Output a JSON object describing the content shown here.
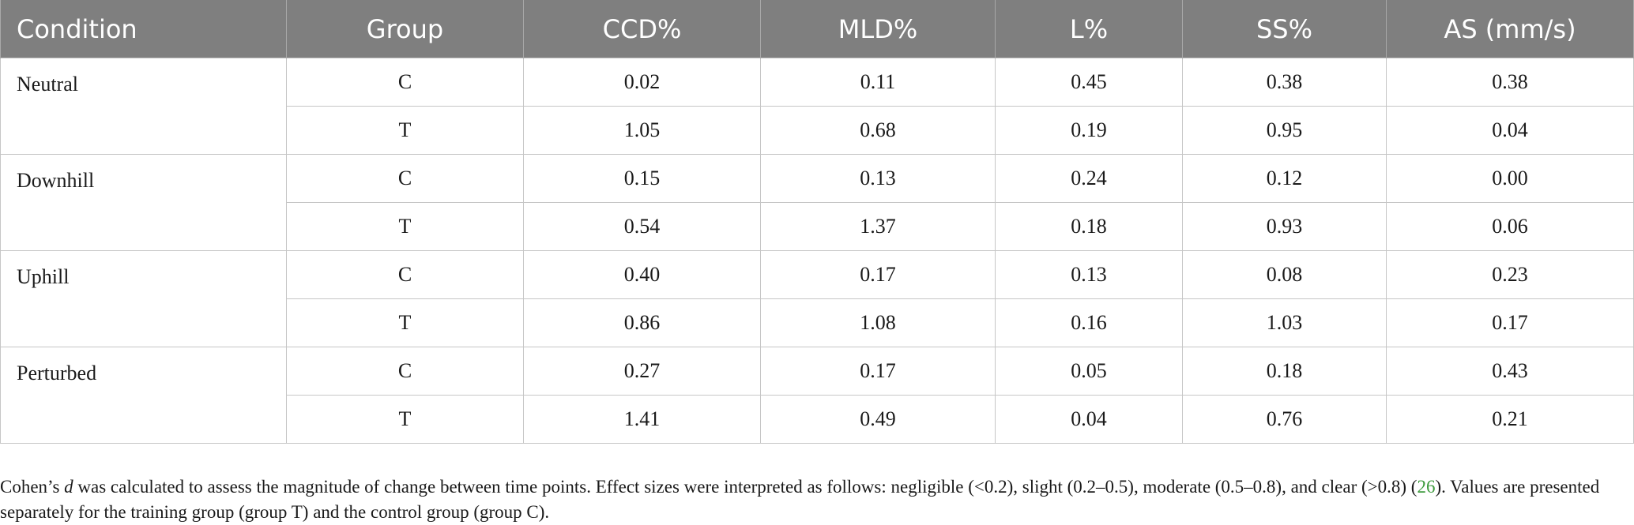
{
  "table": {
    "headers": [
      "Condition",
      "Group",
      "CCD%",
      "MLD%",
      "L%",
      "SS%",
      "AS (mm/s)"
    ],
    "conditions": [
      {
        "name": "Neutral",
        "rows": [
          {
            "group": "C",
            "values": [
              "0.02",
              "0.11",
              "0.45",
              "0.38",
              "0.38"
            ]
          },
          {
            "group": "T",
            "values": [
              "1.05",
              "0.68",
              "0.19",
              "0.95",
              "0.04"
            ]
          }
        ]
      },
      {
        "name": "Downhill",
        "rows": [
          {
            "group": "C",
            "values": [
              "0.15",
              "0.13",
              "0.24",
              "0.12",
              "0.00"
            ]
          },
          {
            "group": "T",
            "values": [
              "0.54",
              "1.37",
              "0.18",
              "0.93",
              "0.06"
            ]
          }
        ]
      },
      {
        "name": "Uphill",
        "rows": [
          {
            "group": "C",
            "values": [
              "0.40",
              "0.17",
              "0.13",
              "0.08",
              "0.23"
            ]
          },
          {
            "group": "T",
            "values": [
              "0.86",
              "1.08",
              "0.16",
              "1.03",
              "0.17"
            ]
          }
        ]
      },
      {
        "name": "Perturbed",
        "rows": [
          {
            "group": "C",
            "values": [
              "0.27",
              "0.17",
              "0.05",
              "0.18",
              "0.43"
            ]
          },
          {
            "group": "T",
            "values": [
              "1.41",
              "0.49",
              "0.04",
              "0.76",
              "0.21"
            ]
          }
        ]
      }
    ]
  },
  "footnote": {
    "before_ref": "Cohen’s d was calculated to assess the magnitude of change between time points. Effect sizes were interpreted as follows: negligible (<0.2), slight (0.2–0.5), moderate (0.5–0.8), and clear (>0.8) (",
    "ref": "26",
    "after_ref": "). Values are presented separately for the training group (group T) and the control group (group C)."
  },
  "colors": {
    "header_bg": "#7f7f7f",
    "header_text": "#ffffff",
    "grid": "#c6c6c6",
    "ref_link": "#3c9a3c"
  }
}
